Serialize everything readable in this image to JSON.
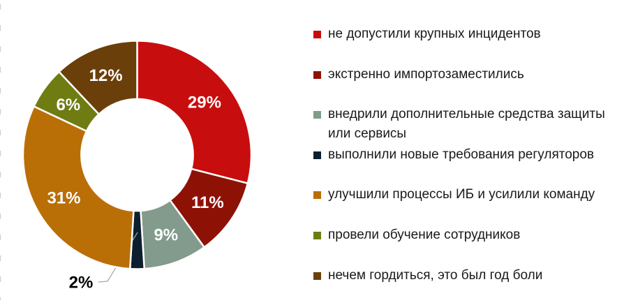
{
  "chart_data": {
    "type": "donut",
    "title": "",
    "legend_position": "right",
    "direction": "clockwise",
    "start_angle_deg": 0,
    "inner_radius_ratio": 0.49,
    "total": 100,
    "inside_label_color": "#ffffff",
    "outside_label_color": "#000000",
    "leader_line_color": "#a6a6a6",
    "slice_border_color": "#ffffff",
    "series": [
      {
        "label": "не допустили крупных инцидентов",
        "value": 29,
        "pct_label": "29%",
        "color": "#c80d0e",
        "label_placement": "inside"
      },
      {
        "label": "экстренно импортозаместились",
        "value": 11,
        "pct_label": "11%",
        "color": "#8d1205",
        "label_placement": "inside"
      },
      {
        "label": "внедрили дополнительные средства защиты или сервисы",
        "value": 9,
        "pct_label": "9%",
        "color": "#829b8c",
        "label_placement": "inside"
      },
      {
        "label": "выполнили новые требования регуляторов",
        "value": 2,
        "pct_label": "2%",
        "color": "#0d1f2e",
        "label_placement": "outside"
      },
      {
        "label": "улучшили процессы ИБ и усилили команду",
        "value": 31,
        "pct_label": "31%",
        "color": "#b96f06",
        "label_placement": "inside"
      },
      {
        "label": "провели обучение сотрудников",
        "value": 6,
        "pct_label": "6%",
        "color": "#6e7c12",
        "label_placement": "inside"
      },
      {
        "label": "нечем гордиться, это был год боли",
        "value": 12,
        "pct_label": "12%",
        "color": "#6b3f0a",
        "label_placement": "inside"
      }
    ]
  }
}
